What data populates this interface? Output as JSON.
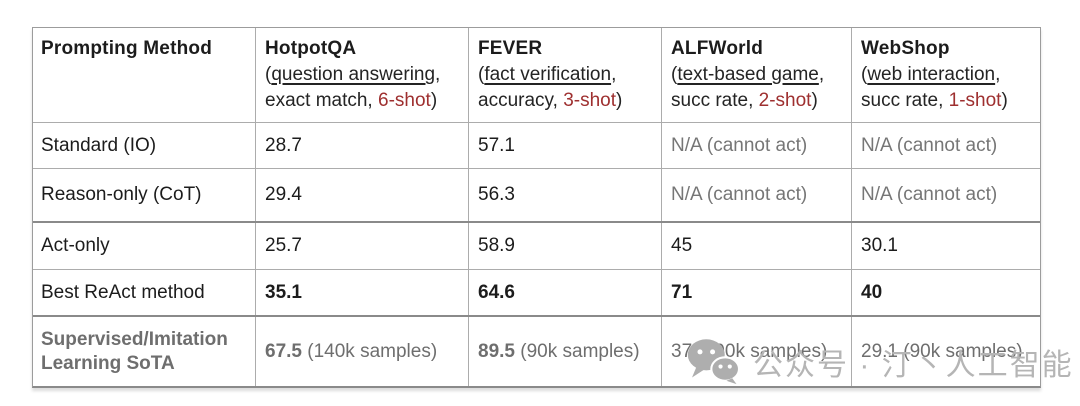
{
  "figure": {
    "background": "#ffffff"
  },
  "colors": {
    "text": "#1c1c1c",
    "accent_red": "#9e2f2f",
    "muted_gray": "#767676",
    "sota_gray": "#6e6e6e",
    "border": "#acacac",
    "border_strong": "#8a8a8a",
    "watermark_gray": "#b5b5b5"
  },
  "table": {
    "header": {
      "method_label": "Prompting Method",
      "benchmarks": [
        {
          "name": "HotpotQA",
          "sub1": [
            {
              "t": "("
            },
            {
              "t": "question answering",
              "u": 1
            },
            {
              "t": ","
            }
          ],
          "sub2": [
            {
              "t": "exact match, "
            },
            {
              "t": "6-shot",
              "red": 1
            },
            {
              "t": ")"
            }
          ]
        },
        {
          "name": "FEVER",
          "sub1": [
            {
              "t": "("
            },
            {
              "t": "fact verification",
              "u": 1
            },
            {
              "t": ","
            }
          ],
          "sub2": [
            {
              "t": "accuracy, "
            },
            {
              "t": "3-shot",
              "red": 1
            },
            {
              "t": ")"
            }
          ]
        },
        {
          "name": "ALFWorld",
          "sub1": [
            {
              "t": "("
            },
            {
              "t": "text-based game",
              "u": 1
            },
            {
              "t": ","
            }
          ],
          "sub2": [
            {
              "t": "succ rate, "
            },
            {
              "t": "2-shot",
              "red": 1
            },
            {
              "t": ")"
            }
          ]
        },
        {
          "name": "WebShop",
          "sub1": [
            {
              "t": "("
            },
            {
              "t": "web interaction",
              "u": 1
            },
            {
              "t": ","
            }
          ],
          "sub2": [
            {
              "t": "succ rate, "
            },
            {
              "t": "1-shot",
              "red": 1
            },
            {
              "t": ")"
            }
          ]
        }
      ]
    },
    "rows": [
      {
        "label": [
          {
            "t": "Standard (IO)"
          }
        ],
        "cells": [
          [
            {
              "t": "28.7"
            }
          ],
          [
            {
              "t": "57.1"
            }
          ],
          [
            {
              "t": "N/A (cannot act)",
              "m": 1
            }
          ],
          [
            {
              "t": "N/A (cannot act)",
              "m": 1
            }
          ]
        ]
      },
      {
        "label": [
          {
            "t": "Reason-only (CoT)"
          }
        ],
        "cells": [
          [
            {
              "t": "29.4"
            }
          ],
          [
            {
              "t": "56.3"
            }
          ],
          [
            {
              "t": "N/A (cannot act)",
              "m": 1
            }
          ],
          [
            {
              "t": "N/A (cannot act)",
              "m": 1
            }
          ]
        ]
      },
      {
        "group_start": true,
        "label": [
          {
            "t": "Act-only"
          }
        ],
        "cells": [
          [
            {
              "t": "25.7"
            }
          ],
          [
            {
              "t": "58.9"
            }
          ],
          [
            {
              "t": "45"
            }
          ],
          [
            {
              "t": "30.1"
            }
          ]
        ]
      },
      {
        "label": [
          {
            "t": "Best ReAct method"
          }
        ],
        "cells": [
          [
            {
              "t": "35.1",
              "b": 1
            }
          ],
          [
            {
              "t": "64.6",
              "b": 1
            }
          ],
          [
            {
              "t": "71",
              "b": 1
            }
          ],
          [
            {
              "t": "40",
              "b": 1
            }
          ]
        ]
      },
      {
        "group_start": true,
        "muted": true,
        "label": [
          {
            "t": "Supervised/Imitation Learning SoTA",
            "b": 1
          }
        ],
        "cells": [
          [
            {
              "t": "67.5",
              "b": 1
            },
            {
              "t": " (140k samples)"
            }
          ],
          [
            {
              "t": "89.5",
              "b": 1
            },
            {
              "t": " (90k samples)"
            }
          ],
          [
            {
              "t": "37 (100k samples)"
            }
          ],
          [
            {
              "t": "29.1 (90k samples)"
            }
          ]
        ]
      }
    ]
  },
  "watermark": {
    "icon": "wechat-icon",
    "text": "公众号 · 汀丶人工智能"
  },
  "chart_data": {
    "type": "table",
    "columns": [
      "Prompting Method",
      "HotpotQA (question answering, exact match, 6-shot)",
      "FEVER (fact verification, accuracy, 3-shot)",
      "ALFWorld (text-based game, succ rate, 2-shot)",
      "WebShop (web interaction, succ rate, 1-shot)"
    ],
    "rows": [
      [
        "Standard (IO)",
        28.7,
        57.1,
        "N/A (cannot act)",
        "N/A (cannot act)"
      ],
      [
        "Reason-only (CoT)",
        29.4,
        56.3,
        "N/A (cannot act)",
        "N/A (cannot act)"
      ],
      [
        "Act-only",
        25.7,
        58.9,
        45,
        30.1
      ],
      [
        "Best ReAct method",
        35.1,
        64.6,
        71,
        40
      ],
      [
        "Supervised/Imitation Learning SoTA",
        "67.5 (140k samples)",
        "89.5 (90k samples)",
        "37 (100k samples)",
        "29.1 (90k samples)"
      ]
    ],
    "bold_values": {
      "Best ReAct method": [
        35.1,
        64.6,
        71,
        40
      ],
      "Supervised/Imitation Learning SoTA": [
        67.5,
        89.5
      ]
    }
  }
}
